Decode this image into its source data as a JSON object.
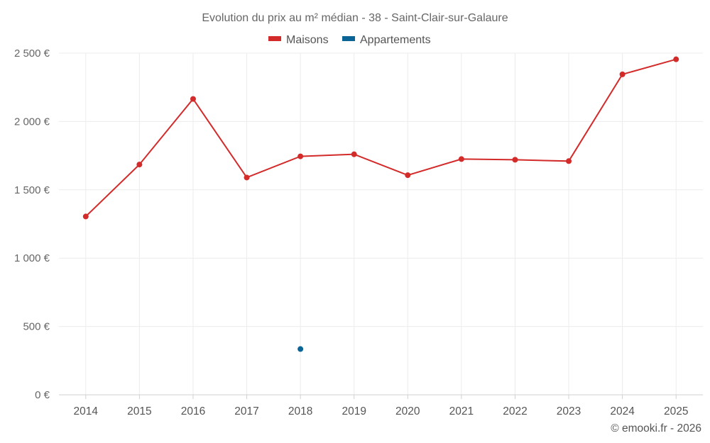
{
  "chart_data": {
    "type": "line",
    "title": "Evolution du prix au m² médian - 38 - Saint-Clair-sur-Galaure",
    "categories": [
      "2014",
      "2015",
      "2016",
      "2017",
      "2018",
      "2019",
      "2020",
      "2021",
      "2022",
      "2023",
      "2024",
      "2025"
    ],
    "series": [
      {
        "name": "Maisons",
        "color": "#d32a2a",
        "values": [
          1305,
          1685,
          2165,
          1590,
          1745,
          1760,
          1607,
          1725,
          1720,
          1710,
          2345,
          2455
        ]
      },
      {
        "name": "Appartements",
        "color": "#0a6496",
        "values": [
          null,
          null,
          null,
          null,
          335,
          null,
          null,
          null,
          null,
          null,
          null,
          null
        ]
      }
    ],
    "ylim": [
      0,
      2500
    ],
    "yticks": [
      0,
      500,
      1000,
      1500,
      2000,
      2500
    ],
    "ytick_labels": [
      "0 €",
      "500 €",
      "1 000 €",
      "1 500 €",
      "2 000 €",
      "2 500 €"
    ],
    "xlabel": "",
    "ylabel": "",
    "legend_position": "top-center",
    "grid": true
  },
  "credit": "© emooki.fr - 2026"
}
